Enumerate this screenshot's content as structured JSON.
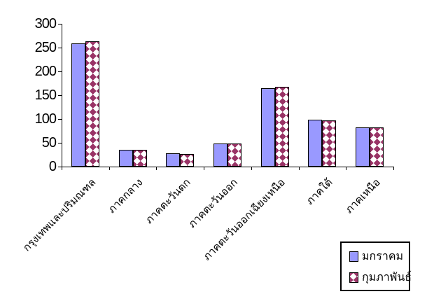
{
  "chart_data": {
    "type": "bar",
    "title": "",
    "xlabel": "",
    "ylabel": "",
    "categories": [
      "กรุงเทพและปริมณฑล",
      "ภาคกลาง",
      "ภาคตะวันตก",
      "ภาคตะวันออก",
      "ภาคตะวันออกเฉียงเหนือ",
      "ภาคใต้",
      "ภาคเหนือ"
    ],
    "series": [
      {
        "name": "มกราคม",
        "color": "#9999ff",
        "fill": "solid",
        "values": [
          259,
          36,
          28,
          48,
          165,
          98,
          82
        ]
      },
      {
        "name": "กุมภาพันธ์",
        "color": "#993366",
        "fill": "diamond-pattern",
        "values": [
          263,
          36,
          26,
          48,
          167,
          97,
          82
        ]
      }
    ],
    "ylim": [
      0,
      300
    ],
    "yticks": [
      0,
      50,
      100,
      150,
      200,
      250,
      300
    ],
    "grid": false,
    "legend_position": "bottom-right",
    "background_color": "#ffffff",
    "axis_color": "#000000"
  }
}
